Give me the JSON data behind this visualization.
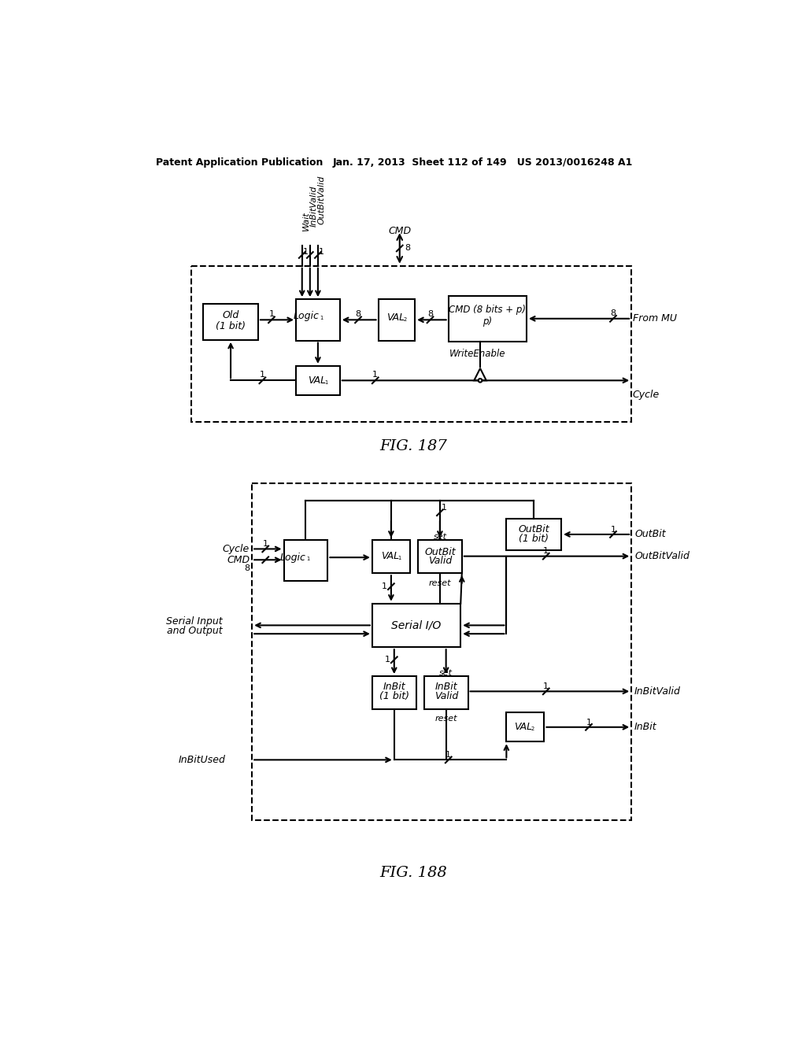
{
  "page_header_left": "Patent Application Publication",
  "page_header_mid": "Jan. 17, 2013  Sheet 112 of 149   US 2013/0016248 A1",
  "fig187_label": "FIG. 187",
  "fig188_label": "FIG. 188",
  "background_color": "#ffffff"
}
